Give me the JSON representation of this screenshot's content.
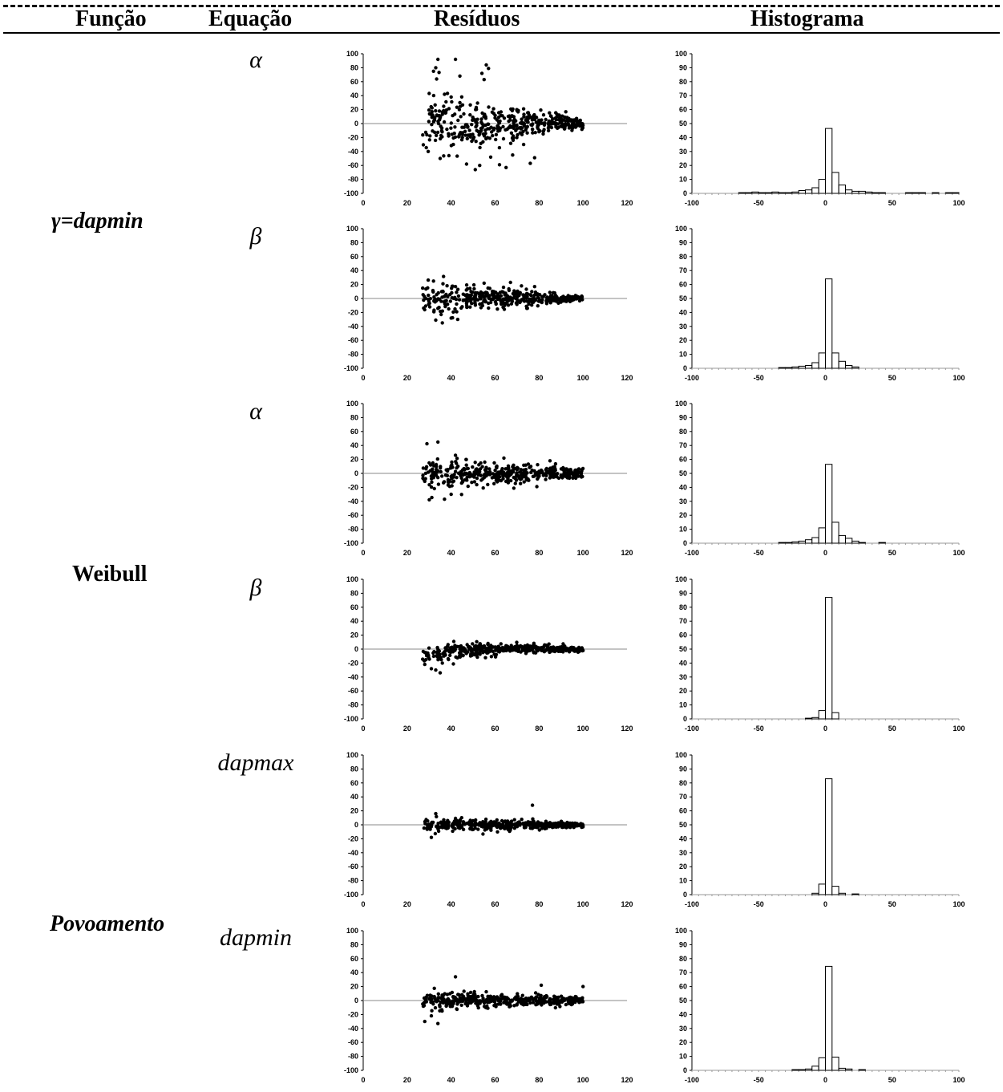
{
  "headers": {
    "funcao": "Função",
    "equacao": "Equação",
    "residuos": "Resíduos",
    "histograma": "Histograma"
  },
  "groups": [
    {
      "label": "γ=dapmin"
    },
    {
      "label": "Weibull"
    },
    {
      "label": "Povoamento"
    }
  ],
  "rows": [
    {
      "equation": "α"
    },
    {
      "equation": "β"
    },
    {
      "equation": "α"
    },
    {
      "equation": "β"
    },
    {
      "equation": "dapmax"
    },
    {
      "equation": "dapmin"
    }
  ],
  "chart_data": [
    {
      "type": "scatter",
      "panel": "residuos",
      "row": 1,
      "xlim": [
        0,
        120
      ],
      "ylim": [
        -100,
        100
      ],
      "xticks": [
        0,
        20,
        40,
        60,
        80,
        100,
        120
      ],
      "yticks": [
        100,
        80,
        60,
        40,
        20,
        0,
        -20,
        -40,
        -60,
        -80,
        -100
      ],
      "x_range": [
        27,
        100
      ],
      "spread_start": 45,
      "spread_end": 8,
      "n": 420,
      "seed": 11,
      "points": [
        [
          32,
          75
        ],
        [
          33,
          80
        ],
        [
          34,
          92
        ],
        [
          42,
          92
        ],
        [
          44,
          68
        ],
        [
          54,
          72
        ],
        [
          55,
          63
        ],
        [
          56,
          84
        ],
        [
          57,
          79
        ],
        [
          51,
          -66
        ],
        [
          53,
          -60
        ],
        [
          47,
          -58
        ],
        [
          65,
          -63
        ],
        [
          68,
          -45
        ],
        [
          76,
          -57
        ],
        [
          73,
          -30
        ],
        [
          78,
          -49
        ],
        [
          58,
          -48
        ],
        [
          62,
          -59
        ],
        [
          39,
          -46
        ],
        [
          41,
          -30
        ],
        [
          35,
          -50
        ],
        [
          37,
          42
        ],
        [
          40,
          38
        ],
        [
          44,
          30
        ]
      ]
    },
    {
      "type": "histogram",
      "panel": "histograma",
      "row": 1,
      "xlim": [
        -100,
        100
      ],
      "ylim": [
        0,
        100
      ],
      "bin_width": 5,
      "xticks": [
        -100,
        -50,
        0,
        50,
        100
      ],
      "yticks": [
        100,
        90,
        80,
        70,
        60,
        50,
        40,
        30,
        20,
        10,
        0
      ],
      "bins": [
        -100,
        -95,
        -90,
        -85,
        -80,
        -75,
        -70,
        -65,
        -60,
        -55,
        -50,
        -45,
        -40,
        -35,
        -30,
        -25,
        -20,
        -15,
        -10,
        -5,
        0,
        5,
        10,
        15,
        20,
        25,
        30,
        35,
        40,
        45,
        50,
        55,
        60,
        65,
        70,
        75,
        80,
        85,
        90,
        95
      ],
      "values": [
        0,
        0,
        0,
        0,
        0,
        0,
        0,
        0.5,
        0.5,
        1,
        0.5,
        0.5,
        1,
        0.5,
        0.5,
        1,
        2,
        2.5,
        4,
        10,
        46.5,
        15,
        6,
        2.5,
        1.5,
        1.5,
        1,
        0.5,
        0.5,
        0,
        0,
        0,
        0.5,
        0.5,
        0.5,
        0,
        0.5,
        0,
        0.5,
        0.5
      ]
    },
    {
      "type": "scatter",
      "panel": "residuos",
      "row": 2,
      "xlim": [
        0,
        120
      ],
      "ylim": [
        -100,
        100
      ],
      "xticks": [
        0,
        20,
        40,
        60,
        80,
        100,
        120
      ],
      "yticks": [
        100,
        80,
        60,
        40,
        20,
        0,
        -20,
        -40,
        -60,
        -80,
        -100
      ],
      "x_range": [
        27,
        100
      ],
      "spread_start": 22,
      "spread_end": 4,
      "n": 420,
      "seed": 22,
      "points": [
        [
          32,
          25
        ],
        [
          36,
          -35
        ],
        [
          33,
          -31
        ],
        [
          40,
          -28
        ],
        [
          43,
          -30
        ],
        [
          42,
          17
        ],
        [
          55,
          22
        ],
        [
          67,
          23
        ],
        [
          78,
          17
        ],
        [
          72,
          18
        ]
      ]
    },
    {
      "type": "histogram",
      "panel": "histograma",
      "row": 2,
      "xlim": [
        -100,
        100
      ],
      "ylim": [
        0,
        100
      ],
      "bin_width": 5,
      "xticks": [
        -100,
        -50,
        0,
        50,
        100
      ],
      "yticks": [
        100,
        90,
        80,
        70,
        60,
        50,
        40,
        30,
        20,
        10,
        0
      ],
      "bins": [
        -100,
        -95,
        -90,
        -85,
        -80,
        -75,
        -70,
        -65,
        -60,
        -55,
        -50,
        -45,
        -40,
        -35,
        -30,
        -25,
        -20,
        -15,
        -10,
        -5,
        0,
        5,
        10,
        15,
        20,
        25,
        30,
        35,
        40,
        45,
        50,
        55,
        60,
        65,
        70,
        75,
        80,
        85,
        90,
        95
      ],
      "values": [
        0,
        0,
        0,
        0,
        0,
        0,
        0,
        0,
        0,
        0,
        0,
        0,
        0,
        0.5,
        0.5,
        1,
        1.5,
        2,
        4,
        11,
        64,
        11,
        5,
        2,
        1,
        0,
        0,
        0,
        0,
        0,
        0,
        0,
        0,
        0,
        0,
        0,
        0,
        0,
        0,
        0
      ]
    },
    {
      "type": "scatter",
      "panel": "residuos",
      "row": 3,
      "xlim": [
        0,
        120
      ],
      "ylim": [
        -100,
        100
      ],
      "xticks": [
        0,
        20,
        40,
        60,
        80,
        100,
        120
      ],
      "yticks": [
        100,
        80,
        60,
        40,
        20,
        0,
        -20,
        -40,
        -60,
        -80,
        -100
      ],
      "x_range": [
        27,
        100
      ],
      "spread_start": 24,
      "spread_end": 6,
      "n": 420,
      "seed": 33,
      "points": [
        [
          34,
          45
        ],
        [
          37,
          -37
        ],
        [
          40,
          -30
        ],
        [
          42,
          26
        ],
        [
          64,
          22
        ],
        [
          79,
          -19
        ],
        [
          85,
          18
        ]
      ]
    },
    {
      "type": "histogram",
      "panel": "histograma",
      "row": 3,
      "xlim": [
        -100,
        100
      ],
      "ylim": [
        0,
        100
      ],
      "bin_width": 5,
      "xticks": [
        -100,
        -50,
        0,
        50,
        100
      ],
      "yticks": [
        100,
        90,
        80,
        70,
        60,
        50,
        40,
        30,
        20,
        10,
        0
      ],
      "bins": [
        -100,
        -95,
        -90,
        -85,
        -80,
        -75,
        -70,
        -65,
        -60,
        -55,
        -50,
        -45,
        -40,
        -35,
        -30,
        -25,
        -20,
        -15,
        -10,
        -5,
        0,
        5,
        10,
        15,
        20,
        25,
        30,
        35,
        40,
        45,
        50,
        55,
        60,
        65,
        70,
        75,
        80,
        85,
        90,
        95
      ],
      "values": [
        0,
        0,
        0,
        0,
        0,
        0,
        0,
        0,
        0,
        0,
        0,
        0,
        0,
        0.5,
        0.5,
        1,
        1.5,
        2.5,
        4,
        11,
        56.5,
        15,
        5.5,
        3.5,
        1.5,
        0.5,
        0,
        0,
        0.5,
        0,
        0,
        0,
        0,
        0,
        0,
        0,
        0,
        0,
        0,
        0
      ]
    },
    {
      "type": "scatter",
      "panel": "residuos",
      "row": 4,
      "xlim": [
        0,
        120
      ],
      "ylim": [
        -100,
        100
      ],
      "xticks": [
        0,
        20,
        40,
        60,
        80,
        100,
        120
      ],
      "yticks": [
        100,
        80,
        60,
        40,
        20,
        0,
        -20,
        -40,
        -60,
        -80,
        -100
      ],
      "x_range": [
        27,
        100
      ],
      "spread_start": 14,
      "spread_end": 3,
      "n": 420,
      "seed": 44,
      "bias_start": -8,
      "points": [
        [
          31,
          -28
        ],
        [
          33,
          -30
        ],
        [
          35,
          -34
        ],
        [
          28,
          -22
        ],
        [
          36,
          -20
        ]
      ]
    },
    {
      "type": "histogram",
      "panel": "histograma",
      "row": 4,
      "xlim": [
        -100,
        100
      ],
      "ylim": [
        0,
        100
      ],
      "bin_width": 5,
      "xticks": [
        -100,
        -50,
        0,
        50,
        100
      ],
      "yticks": [
        100,
        90,
        80,
        70,
        60,
        50,
        40,
        30,
        20,
        10,
        0
      ],
      "bins": [
        -100,
        -95,
        -90,
        -85,
        -80,
        -75,
        -70,
        -65,
        -60,
        -55,
        -50,
        -45,
        -40,
        -35,
        -30,
        -25,
        -20,
        -15,
        -10,
        -5,
        0,
        5,
        10,
        15,
        20,
        25,
        30,
        35,
        40,
        45,
        50,
        55,
        60,
        65,
        70,
        75,
        80,
        85,
        90,
        95
      ],
      "values": [
        0,
        0,
        0,
        0,
        0,
        0,
        0,
        0,
        0,
        0,
        0,
        0,
        0,
        0,
        0,
        0,
        0,
        0.5,
        1,
        6,
        87,
        4.5,
        0,
        0,
        0,
        0,
        0,
        0,
        0,
        0,
        0,
        0,
        0,
        0,
        0,
        0,
        0,
        0,
        0,
        0
      ]
    },
    {
      "type": "scatter",
      "panel": "residuos",
      "row": 5,
      "xlim": [
        0,
        120
      ],
      "ylim": [
        -100,
        100
      ],
      "xticks": [
        0,
        20,
        40,
        60,
        80,
        100,
        120
      ],
      "yticks": [
        100,
        80,
        60,
        40,
        20,
        0,
        -20,
        -40,
        -60,
        -80,
        -100
      ],
      "x_range": [
        27,
        100
      ],
      "spread_start": 10,
      "spread_end": 4,
      "n": 420,
      "seed": 55,
      "points": [
        [
          77,
          28
        ],
        [
          33,
          16
        ],
        [
          31,
          -18
        ]
      ]
    },
    {
      "type": "histogram",
      "panel": "histograma",
      "row": 5,
      "xlim": [
        -100,
        100
      ],
      "ylim": [
        0,
        100
      ],
      "bin_width": 5,
      "xticks": [
        -100,
        -50,
        0,
        50,
        100
      ],
      "yticks": [
        100,
        90,
        80,
        70,
        60,
        50,
        40,
        30,
        20,
        10,
        0
      ],
      "bins": [
        -100,
        -95,
        -90,
        -85,
        -80,
        -75,
        -70,
        -65,
        -60,
        -55,
        -50,
        -45,
        -40,
        -35,
        -30,
        -25,
        -20,
        -15,
        -10,
        -5,
        0,
        5,
        10,
        15,
        20,
        25,
        30,
        35,
        40,
        45,
        50,
        55,
        60,
        65,
        70,
        75,
        80,
        85,
        90,
        95
      ],
      "values": [
        0,
        0,
        0,
        0,
        0,
        0,
        0,
        0,
        0,
        0,
        0,
        0,
        0,
        0,
        0,
        0,
        0,
        0,
        1,
        7.5,
        83,
        6,
        1,
        0,
        0.5,
        0,
        0,
        0,
        0,
        0,
        0,
        0,
        0,
        0,
        0,
        0,
        0,
        0,
        0,
        0
      ]
    },
    {
      "type": "scatter",
      "panel": "residuos",
      "row": 6,
      "xlim": [
        0,
        120
      ],
      "ylim": [
        -100,
        100
      ],
      "xticks": [
        0,
        20,
        40,
        60,
        80,
        100,
        120
      ],
      "yticks": [
        100,
        80,
        60,
        40,
        20,
        0,
        -20,
        -40,
        -60,
        -80,
        -100
      ],
      "x_range": [
        27,
        100
      ],
      "spread_start": 14,
      "spread_end": 5,
      "n": 420,
      "seed": 66,
      "points": [
        [
          42,
          34
        ],
        [
          28,
          -30
        ],
        [
          34,
          -33
        ],
        [
          31,
          -22
        ],
        [
          100,
          20
        ],
        [
          81,
          22
        ]
      ]
    },
    {
      "type": "histogram",
      "panel": "histograma",
      "row": 6,
      "xlim": [
        -100,
        100
      ],
      "ylim": [
        0,
        100
      ],
      "bin_width": 5,
      "xticks": [
        -100,
        -50,
        0,
        50,
        100
      ],
      "yticks": [
        100,
        90,
        80,
        70,
        60,
        50,
        40,
        30,
        20,
        10,
        0
      ],
      "bins": [
        -100,
        -95,
        -90,
        -85,
        -80,
        -75,
        -70,
        -65,
        -60,
        -55,
        -50,
        -45,
        -40,
        -35,
        -30,
        -25,
        -20,
        -15,
        -10,
        -5,
        0,
        5,
        10,
        15,
        20,
        25,
        30,
        35,
        40,
        45,
        50,
        55,
        60,
        65,
        70,
        75,
        80,
        85,
        90,
        95
      ],
      "values": [
        0,
        0,
        0,
        0,
        0,
        0,
        0,
        0,
        0,
        0,
        0,
        0,
        0,
        0,
        0,
        0.5,
        0.5,
        1,
        3,
        9,
        74.5,
        9.5,
        1.5,
        1,
        0,
        0.5,
        0,
        0,
        0,
        0,
        0,
        0,
        0,
        0,
        0,
        0,
        0,
        0,
        0,
        0
      ]
    }
  ]
}
